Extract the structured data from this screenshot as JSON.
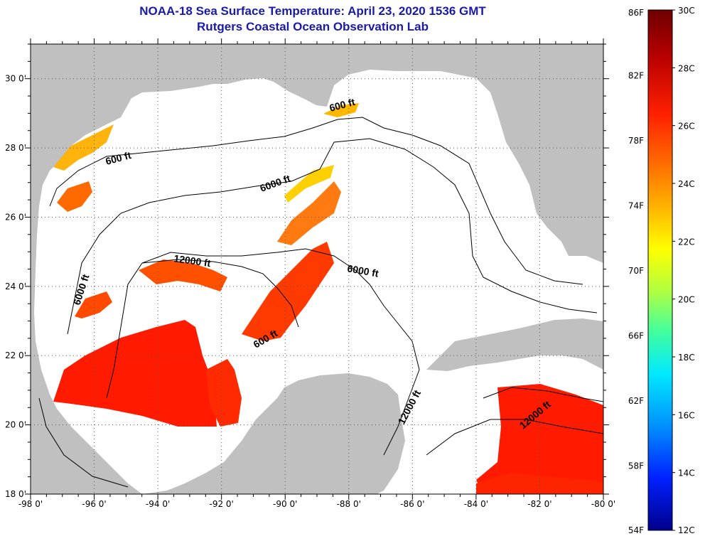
{
  "title": {
    "line1": "NOAA-18 Sea Surface Temperature:  April 23, 2020 1536 GMT",
    "line2": "Rutgers Coastal Ocean Observation Lab"
  },
  "map": {
    "lon_range": [
      -98,
      -80
    ],
    "lat_range": [
      18,
      31
    ],
    "lon_ticks": [
      "-98 0'",
      "-96 0'",
      "-94 0'",
      "-92 0'",
      "-90 0'",
      "-88 0'",
      "-86 0'",
      "-84 0'",
      "-82 0'",
      "-80 0'"
    ],
    "lat_ticks": [
      "18 0'",
      "20 0'",
      "22 0'",
      "24 0'",
      "26 0'",
      "28 0'",
      "30 0'"
    ],
    "contour_labels": [
      "600 ft",
      "600 ft",
      "6000 ft",
      "6000 ft",
      "12000 ft",
      "6000 ft",
      "600 ft",
      "12000 ft",
      "12000 ft"
    ],
    "land_color": "#c0c0c0",
    "ocean_color": "#ffffff"
  },
  "colorbar": {
    "fahrenheit_labels": [
      "86F",
      "82F",
      "78F",
      "74F",
      "70F",
      "66F",
      "62F",
      "58F",
      "54F"
    ],
    "celsius_labels": [
      "30C",
      "28C",
      "26C",
      "24C",
      "22C",
      "20C",
      "18C",
      "16C",
      "14C",
      "12C"
    ],
    "colors": [
      "#7a0000",
      "#c00000",
      "#ff1a00",
      "#ff6a00",
      "#ffb000",
      "#ffff00",
      "#a0ff40",
      "#30ffb0",
      "#00e0ff",
      "#0090ff",
      "#0030ff",
      "#0000a0"
    ]
  }
}
